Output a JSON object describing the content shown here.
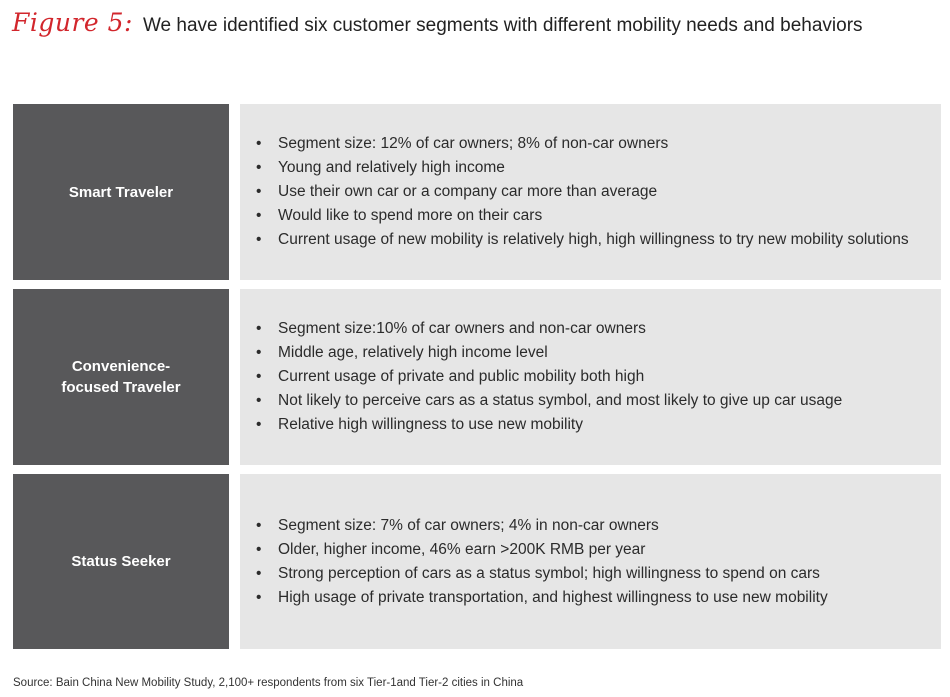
{
  "figure": {
    "label": "Figure 5:",
    "title": "We have identified six customer segments with different mobility needs and behaviors"
  },
  "segments": [
    {
      "name": "Smart Traveler",
      "points": [
        "Segment size: 12% of car owners; 8% of non-car owners",
        "Young and relatively high income",
        "Use their own car or a company car more than average",
        "Would like to spend more on their cars",
        "Current usage of new mobility is relatively high, high willingness to try new mobility solutions"
      ]
    },
    {
      "name": "Convenience-\nfocused Traveler",
      "points": [
        "Segment size:10% of car owners and non-car owners",
        "Middle age, relatively high income level",
        "Current usage of private and public mobility both high",
        "Not likely to perceive cars as a status symbol, and most likely to give up car usage",
        "Relative high willingness to use new mobility"
      ]
    },
    {
      "name": "Status Seeker",
      "points": [
        "Segment size: 7% of car owners; 4% in non-car owners",
        "Older, higher income, 46% earn >200K RMB per year",
        "Strong perception of  cars as a status symbol; high willingness to spend on cars",
        "High usage of private transportation, and highest willingness to use new mobility"
      ]
    }
  ],
  "bullet_char": "•",
  "source": "Source: Bain China New Mobility Study, 2,100+ respondents from six Tier-1and Tier-2 cities in China",
  "colors": {
    "figure_label": "#d2262c",
    "segment_name_bg": "#58585a",
    "segment_body_bg": "#e6e6e6"
  }
}
